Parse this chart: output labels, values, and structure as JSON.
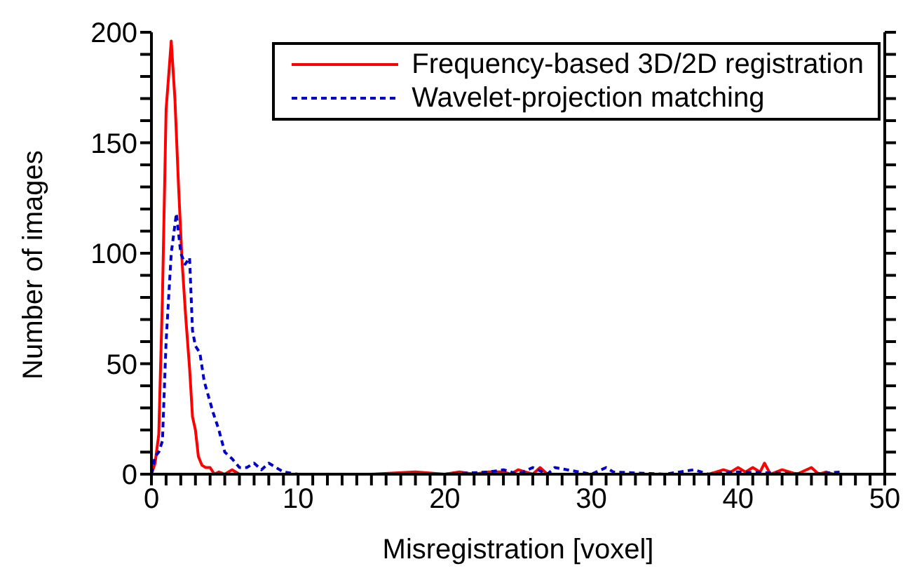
{
  "chart_data": {
    "type": "line",
    "xlabel": "Misregistration [voxel]",
    "ylabel": "Number of images",
    "xlim": [
      0,
      50
    ],
    "ylim": [
      0,
      200
    ],
    "xticks": [
      0,
      {
        "value": 1,
        "label": null
      },
      {
        "value": 2,
        "label": null
      },
      {
        "value": 3,
        "label": null
      },
      {
        "value": 4,
        "label": null
      },
      {
        "value": 5,
        "label": null
      },
      {
        "value": 6,
        "label": null
      },
      {
        "value": 7,
        "label": null
      },
      {
        "value": 8,
        "label": null
      },
      {
        "value": 9,
        "label": null
      },
      10,
      {
        "value": 11,
        "label": null
      },
      {
        "value": 12,
        "label": null
      },
      {
        "value": 13,
        "label": null
      },
      {
        "value": 14,
        "label": null
      },
      {
        "value": 15,
        "label": null
      },
      {
        "value": 16,
        "label": null
      },
      {
        "value": 17,
        "label": null
      },
      {
        "value": 18,
        "label": null
      },
      {
        "value": 19,
        "label": null
      },
      20,
      {
        "value": 21,
        "label": null
      },
      {
        "value": 22,
        "label": null
      },
      {
        "value": 23,
        "label": null
      },
      {
        "value": 24,
        "label": null
      },
      {
        "value": 25,
        "label": null
      },
      {
        "value": 26,
        "label": null
      },
      {
        "value": 27,
        "label": null
      },
      {
        "value": 28,
        "label": null
      },
      {
        "value": 29,
        "label": null
      },
      30,
      {
        "value": 31,
        "label": null
      },
      {
        "value": 32,
        "label": null
      },
      {
        "value": 33,
        "label": null
      },
      {
        "value": 34,
        "label": null
      },
      {
        "value": 35,
        "label": null
      },
      {
        "value": 36,
        "label": null
      },
      {
        "value": 37,
        "label": null
      },
      {
        "value": 38,
        "label": null
      },
      {
        "value": 39,
        "label": null
      },
      40,
      {
        "value": 41,
        "label": null
      },
      {
        "value": 42,
        "label": null
      },
      {
        "value": 43,
        "label": null
      },
      {
        "value": 44,
        "label": null
      },
      {
        "value": 45,
        "label": null
      },
      {
        "value": 46,
        "label": null
      },
      {
        "value": 47,
        "label": null
      },
      {
        "value": 48,
        "label": null
      },
      {
        "value": 49,
        "label": null
      },
      50
    ],
    "yticks": [
      0,
      {
        "value": 10,
        "label": null
      },
      {
        "value": 20,
        "label": null
      },
      {
        "value": 30,
        "label": null
      },
      {
        "value": 40,
        "label": null
      },
      50,
      {
        "value": 60,
        "label": null
      },
      {
        "value": 70,
        "label": null
      },
      {
        "value": 80,
        "label": null
      },
      {
        "value": 90,
        "label": null
      },
      100,
      {
        "value": 110,
        "label": null
      },
      {
        "value": 120,
        "label": null
      },
      {
        "value": 130,
        "label": null
      },
      {
        "value": 140,
        "label": null
      },
      150,
      {
        "value": 160,
        "label": null
      },
      {
        "value": 170,
        "label": null
      },
      {
        "value": 180,
        "label": null
      },
      {
        "value": 190,
        "label": null
      },
      200
    ],
    "grid": false,
    "legend": "top right",
    "marker": "none",
    "series": [
      {
        "name": "Frequency-based 3D/2D registration",
        "color": "#ff0000",
        "line_style": "solid",
        "x": [
          0,
          0.25,
          0.5,
          0.75,
          1,
          1.35,
          1.6,
          1.85,
          2.1,
          2.35,
          2.6,
          2.8,
          3,
          3.2,
          3.45,
          3.7,
          4,
          4.3,
          4.6,
          5,
          5.5,
          6,
          7,
          8,
          10,
          15,
          18,
          20,
          21,
          22,
          23,
          24,
          24.5,
          25,
          26,
          26.5,
          27,
          30,
          35,
          38,
          39,
          39.5,
          40,
          40.5,
          41,
          41.5,
          41.8,
          42.2,
          43,
          44,
          45,
          45.5,
          46,
          46.5
        ],
        "values": [
          0,
          5,
          18,
          80,
          165,
          196,
          170,
          130,
          95,
          70,
          48,
          26,
          20,
          8,
          4,
          3,
          3,
          0,
          1,
          0,
          2,
          0,
          0,
          0,
          0,
          0,
          1,
          0,
          1,
          0,
          1,
          1,
          0,
          2,
          0,
          3,
          0,
          0,
          0,
          0,
          2,
          1,
          3,
          1,
          3,
          1,
          5,
          0,
          2,
          0,
          3,
          0,
          1,
          0
        ]
      },
      {
        "name": "Wavelet-projection matching",
        "color": "#0000cc",
        "line_style": "dashed",
        "x": [
          0,
          0.25,
          0.5,
          0.75,
          1,
          1.35,
          1.7,
          2,
          2.3,
          2.6,
          2.8,
          3,
          3.3,
          3.6,
          3.9,
          4.2,
          4.6,
          5,
          5.5,
          6,
          6.5,
          7,
          7.5,
          8,
          8.5,
          9,
          10,
          15,
          20,
          23,
          24,
          25,
          26,
          27,
          27.5,
          30,
          31,
          31.5,
          35,
          37,
          38,
          40,
          45,
          47
        ],
        "values": [
          0,
          8,
          10,
          15,
          60,
          100,
          118,
          100,
          95,
          98,
          65,
          58,
          55,
          42,
          35,
          28,
          20,
          10,
          7,
          3,
          3,
          5,
          2,
          5,
          3,
          1,
          0,
          0,
          0,
          1,
          2,
          0,
          3,
          0,
          3,
          0,
          3,
          1,
          0,
          2,
          0,
          1,
          0,
          1
        ]
      }
    ]
  }
}
